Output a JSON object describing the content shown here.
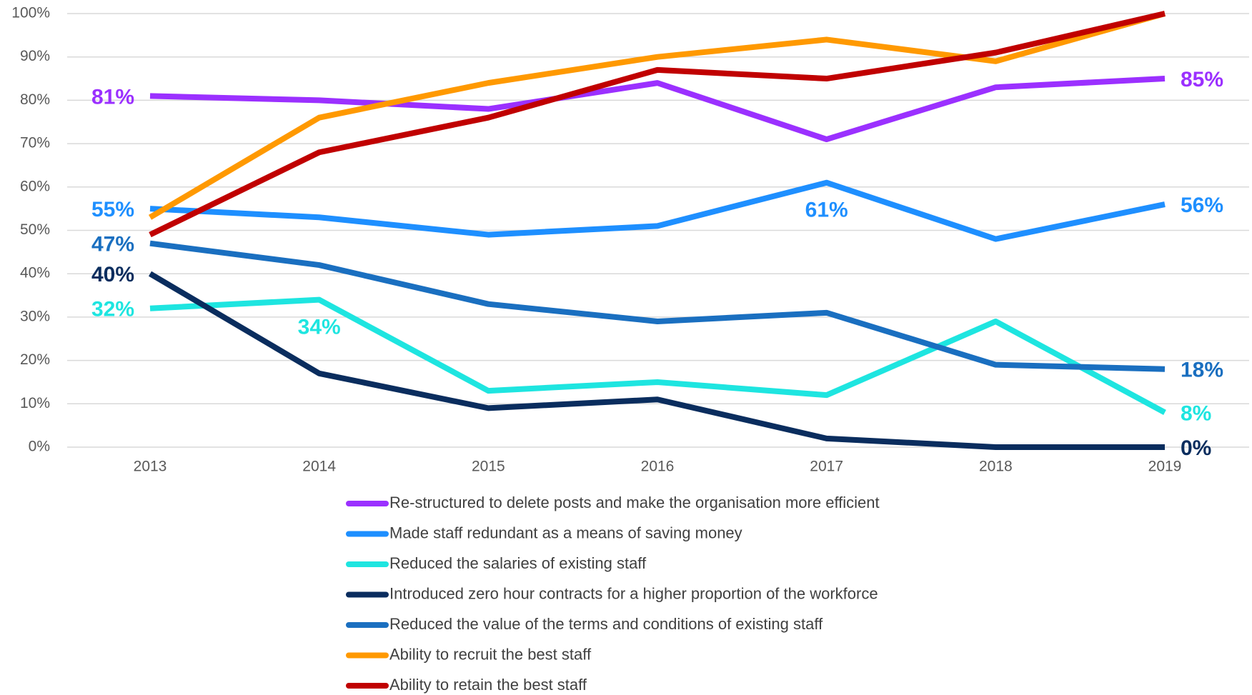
{
  "chart_data": {
    "type": "line",
    "categories": [
      "2013",
      "2014",
      "2015",
      "2016",
      "2017",
      "2018",
      "2019"
    ],
    "ylim": [
      0,
      100
    ],
    "yticks": [
      {
        "value": 0,
        "label": "0%"
      },
      {
        "value": 10,
        "label": "10%"
      },
      {
        "value": 20,
        "label": "20%"
      },
      {
        "value": 30,
        "label": "30%"
      },
      {
        "value": 40,
        "label": "40%"
      },
      {
        "value": 50,
        "label": "50%"
      },
      {
        "value": 60,
        "label": "60%"
      },
      {
        "value": 70,
        "label": "70%"
      },
      {
        "value": 80,
        "label": "80%"
      },
      {
        "value": 90,
        "label": "90%"
      },
      {
        "value": 100,
        "label": "100%"
      }
    ],
    "grid": true,
    "legend": "bottom",
    "series": [
      {
        "name": "Re-structured to delete posts and make the organisation more efficient",
        "color": "#9b30ff",
        "values": [
          81,
          80,
          78,
          84,
          71,
          83,
          85
        ],
        "value_labels": [
          "81%",
          null,
          null,
          null,
          null,
          null,
          "85%"
        ]
      },
      {
        "name": "Made staff redundant as a means of saving money",
        "color": "#1e8fff",
        "values": [
          55,
          53,
          49,
          51,
          61,
          48,
          56
        ],
        "value_labels": [
          "55%",
          null,
          null,
          null,
          "61%",
          null,
          "56%"
        ]
      },
      {
        "name": "Reduced the salaries of existing staff",
        "color": "#1ee5e0",
        "values": [
          32,
          34,
          13,
          15,
          12,
          29,
          8
        ],
        "value_labels": [
          "32%",
          "34%",
          null,
          null,
          null,
          null,
          "8%"
        ]
      },
      {
        "name": "Introduced zero hour contracts for a higher proportion of the workforce",
        "color": "#0a2d5e",
        "values": [
          40,
          17,
          9,
          11,
          2,
          0,
          0
        ],
        "value_labels": [
          "40%",
          null,
          null,
          null,
          null,
          null,
          "0%"
        ]
      },
      {
        "name": "Reduced the value of the terms and conditions of existing staff",
        "color": "#1a6fc0",
        "values": [
          47,
          42,
          33,
          29,
          31,
          19,
          18
        ],
        "value_labels": [
          "47%",
          null,
          null,
          null,
          null,
          null,
          "18%"
        ]
      },
      {
        "name": "Ability to recruit the best staff",
        "color": "#ff9900",
        "values": [
          53,
          76,
          84,
          90,
          94,
          89,
          100
        ]
      },
      {
        "name": "Ability to retain the best staff",
        "color": "#c00000",
        "values": [
          49,
          68,
          76,
          87,
          85,
          91,
          100
        ]
      }
    ]
  }
}
